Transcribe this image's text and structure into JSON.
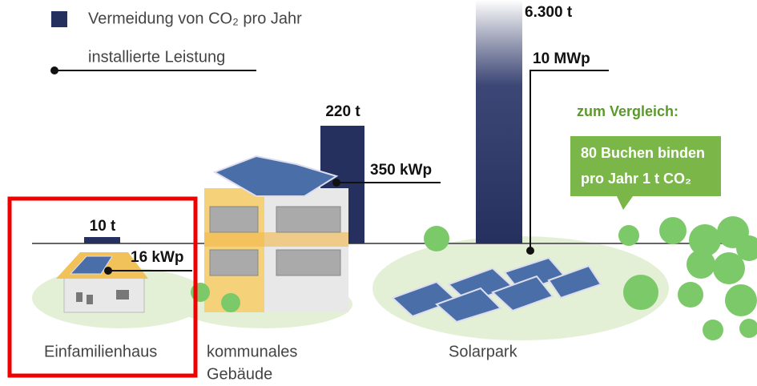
{
  "legend": {
    "bar": "Vermeidung von CO₂ pro Jahr",
    "line": "installierte Leistung"
  },
  "items": [
    {
      "label": [
        "Einfamilienhaus"
      ],
      "co2": "10 t",
      "power": "16 kWp"
    },
    {
      "label": [
        "kommunales",
        "Gebäude"
      ],
      "co2": "220 t",
      "power": "350 kWp"
    },
    {
      "label": [
        "Solarpark"
      ],
      "co2": "6.300 t",
      "power": "10 MWp"
    }
  ],
  "comparison": {
    "heading": "zum Vergleich:",
    "lines": [
      "80 Buchen binden",
      "pro Jahr 1 t CO₂"
    ]
  }
}
